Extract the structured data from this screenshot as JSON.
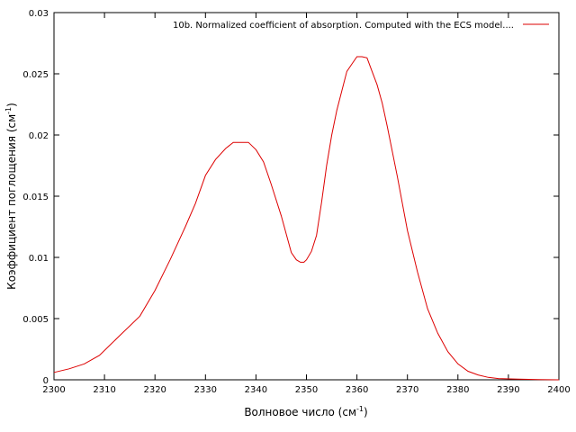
{
  "chart_data": {
    "type": "line",
    "title": "",
    "xlabel": "Волновое число (см",
    "xlabel_sup": "-1",
    "xlabel_suffix": ")",
    "ylabel": "Коэффициент поглощения (см",
    "ylabel_sup": "-1",
    "ylabel_suffix": ")",
    "xlim": [
      2300,
      2400
    ],
    "ylim": [
      0,
      0.03
    ],
    "xticks": [
      "2300",
      "2310",
      "2320",
      "2330",
      "2340",
      "2350",
      "2360",
      "2370",
      "2380",
      "2390",
      "2400"
    ],
    "yticks": [
      "0",
      "0.005",
      "0.01",
      "0.015",
      "0.02",
      "0.025",
      "0.03"
    ],
    "grid": false,
    "legend_position": "top-right",
    "series": [
      {
        "name": "10b. Normalized coefficient of absorption. Computed with the ECS model....",
        "color": "#dd0000",
        "x": [
          2300,
          2303,
          2306,
          2309,
          2313,
          2317,
          2320,
          2323,
          2326,
          2328,
          2330,
          2332,
          2334,
          2335.5,
          2337,
          2338.5,
          2340,
          2341.5,
          2343,
          2345,
          2346,
          2347,
          2348,
          2348.8,
          2349.5,
          2350,
          2351,
          2352,
          2353,
          2354,
          2355,
          2356,
          2357,
          2358,
          2359,
          2360,
          2361,
          2362,
          2363,
          2364,
          2365,
          2366,
          2368,
          2370,
          2372,
          2374,
          2376,
          2378,
          2380,
          2382,
          2384,
          2386,
          2388,
          2392,
          2396,
          2400
        ],
        "y": [
          0.0006,
          0.0009,
          0.0013,
          0.002,
          0.0036,
          0.0052,
          0.0073,
          0.0098,
          0.0125,
          0.0144,
          0.0167,
          0.018,
          0.0189,
          0.0194,
          0.0194,
          0.0194,
          0.0188,
          0.0178,
          0.016,
          0.0134,
          0.0119,
          0.0104,
          0.0098,
          0.0096,
          0.0096,
          0.0098,
          0.0105,
          0.0118,
          0.0145,
          0.0175,
          0.02,
          0.022,
          0.0236,
          0.0252,
          0.0258,
          0.0264,
          0.0264,
          0.0263,
          0.0252,
          0.0241,
          0.0226,
          0.0207,
          0.0166,
          0.0122,
          0.0088,
          0.0058,
          0.0038,
          0.0023,
          0.0013,
          0.0007,
          0.0004,
          0.0002,
          0.0001,
          5e-05,
          2e-05,
          0.0
        ]
      }
    ]
  }
}
